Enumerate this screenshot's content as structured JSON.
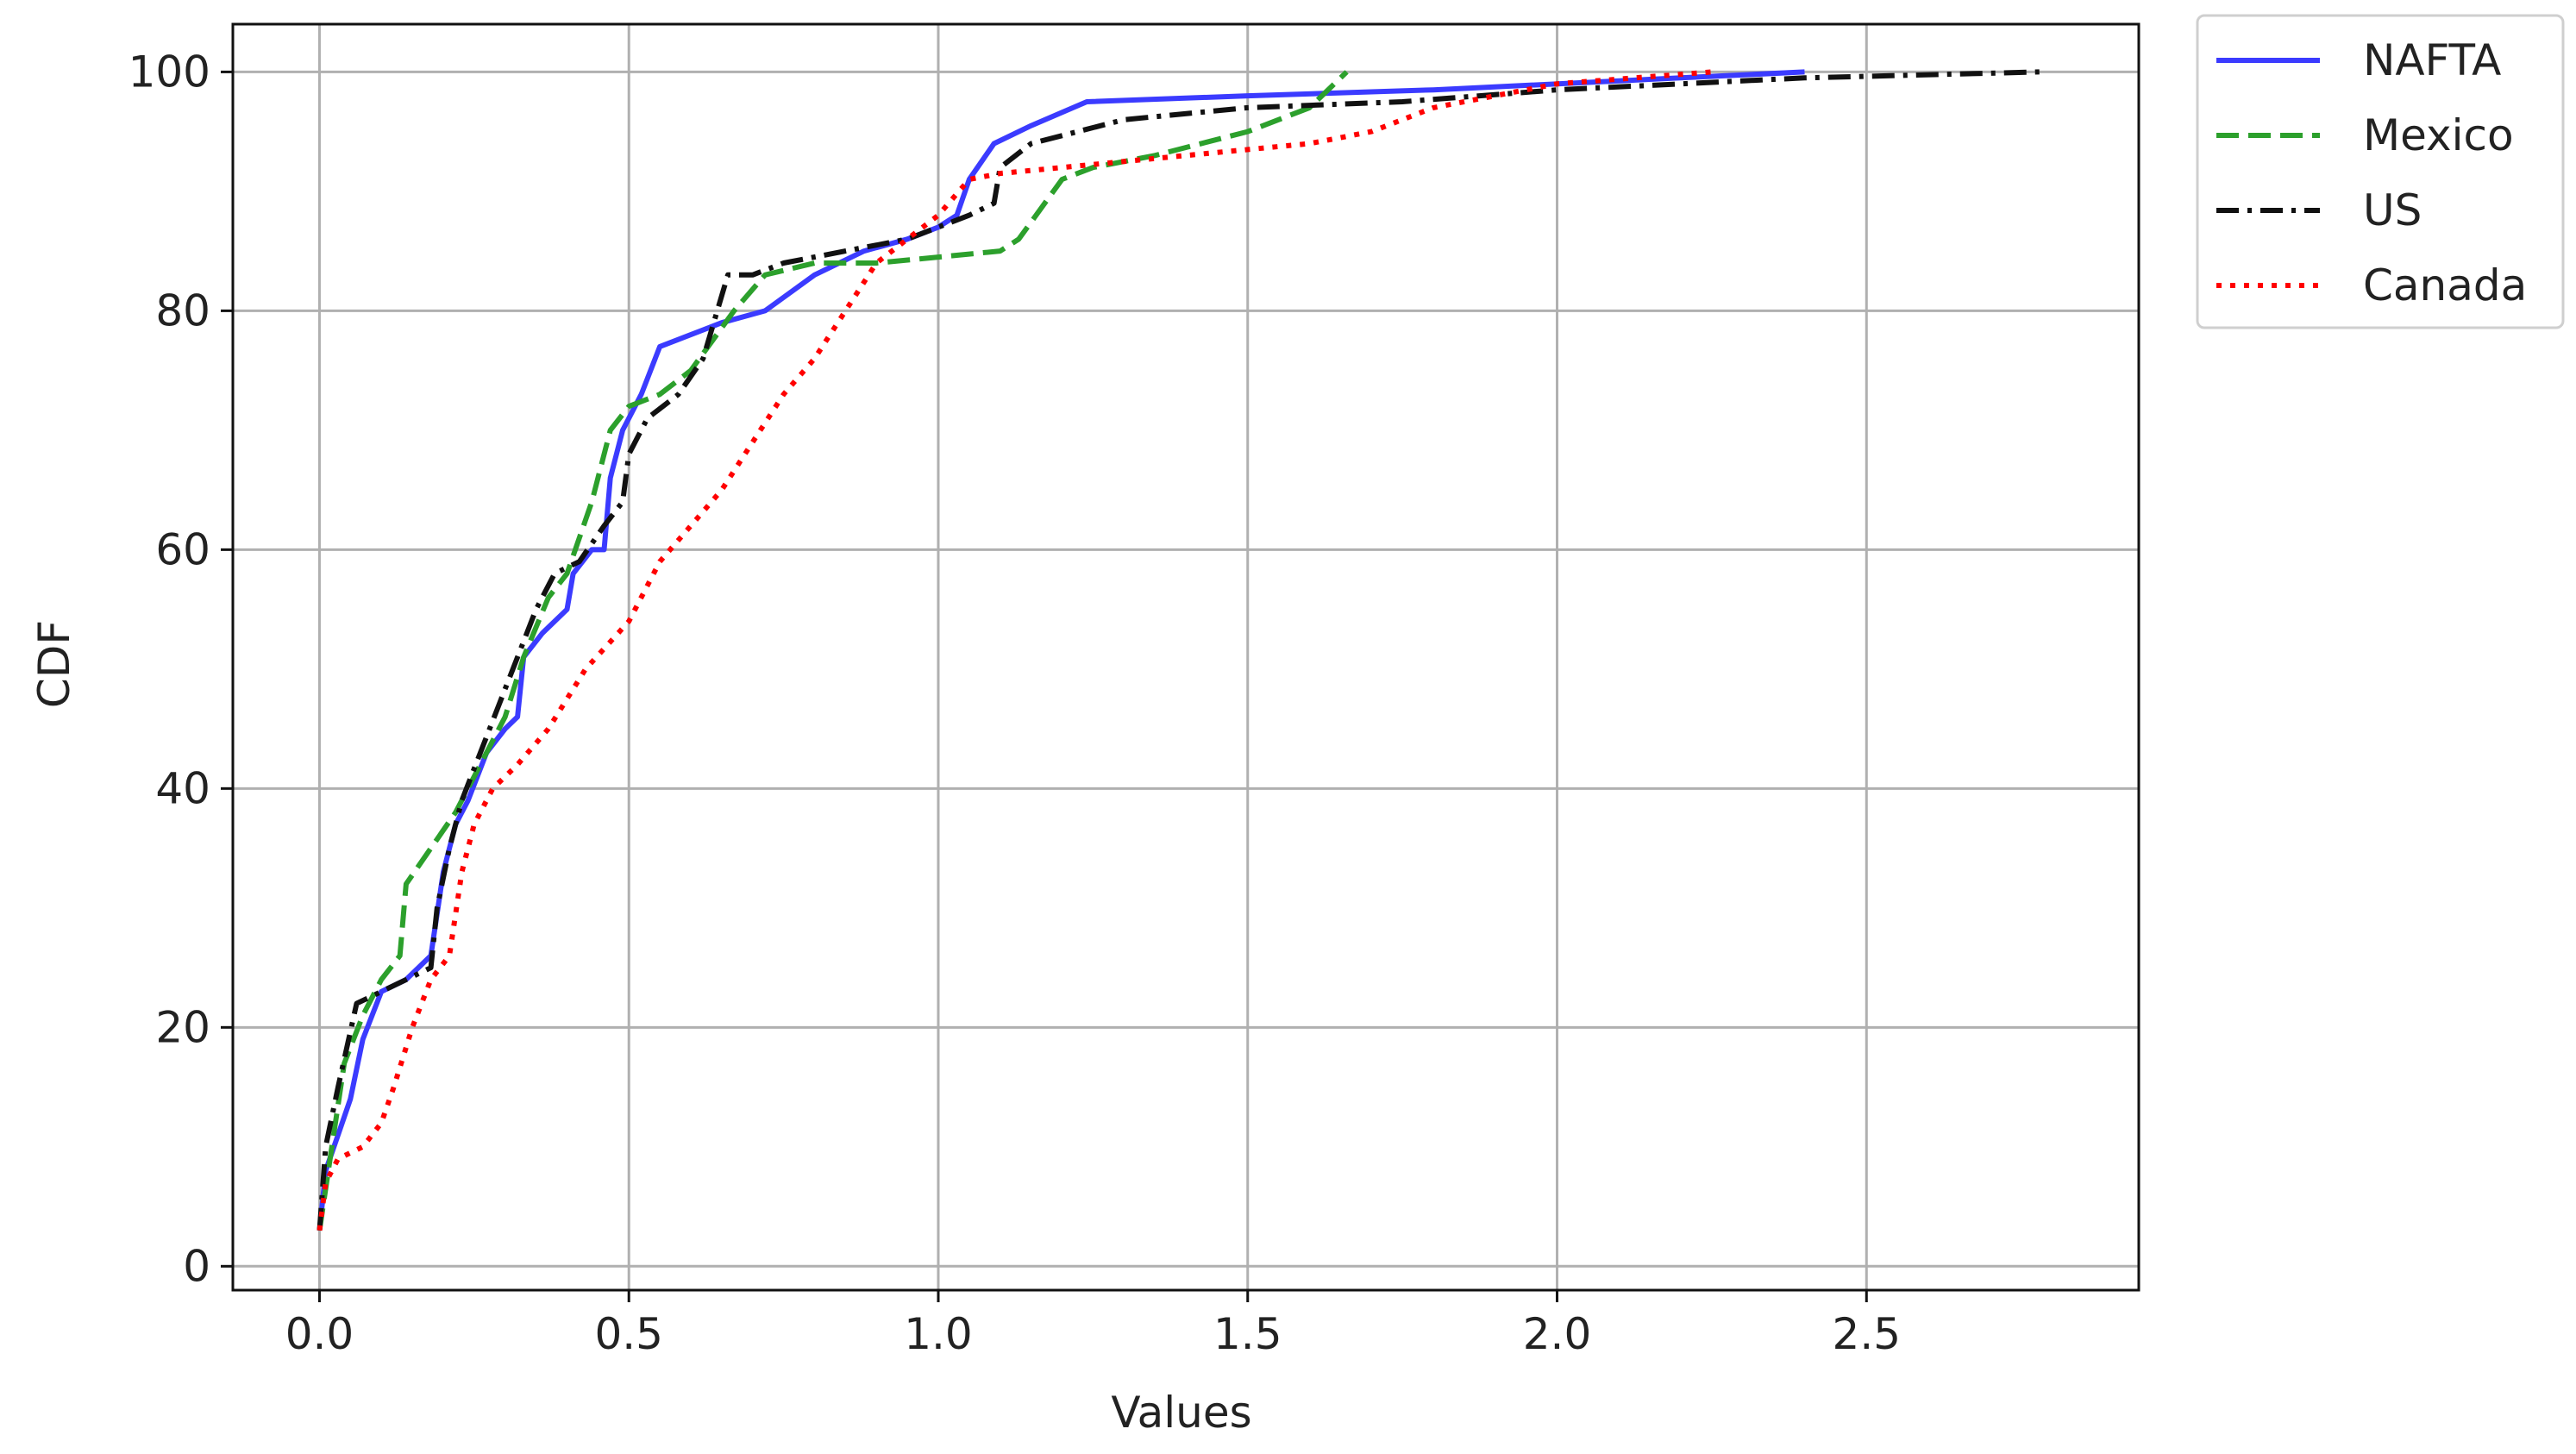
{
  "chart_data": {
    "type": "line",
    "title": "",
    "xlabel": "Values",
    "ylabel": "CDF",
    "xlim": [
      -0.14,
      2.94
    ],
    "ylim": [
      -2,
      104
    ],
    "xticks": [
      0.0,
      0.5,
      1.0,
      1.5,
      2.0,
      2.5
    ],
    "xtick_labels": [
      "0.0",
      "0.5",
      "1.0",
      "1.5",
      "2.0",
      "2.5"
    ],
    "yticks": [
      0,
      20,
      40,
      60,
      80,
      100
    ],
    "ytick_labels": [
      "0",
      "20",
      "40",
      "60",
      "80",
      "100"
    ],
    "grid": true,
    "legend_placement": "outside-top-right",
    "series": [
      {
        "name": "NAFTA",
        "color": "#3b3bff",
        "style": "solid",
        "points": [
          [
            0.0,
            3
          ],
          [
            0.01,
            8
          ],
          [
            0.03,
            11
          ],
          [
            0.05,
            14
          ],
          [
            0.07,
            19
          ],
          [
            0.1,
            23
          ],
          [
            0.14,
            24
          ],
          [
            0.18,
            26
          ],
          [
            0.2,
            33
          ],
          [
            0.22,
            37
          ],
          [
            0.24,
            39
          ],
          [
            0.27,
            43
          ],
          [
            0.3,
            45
          ],
          [
            0.32,
            46
          ],
          [
            0.33,
            51
          ],
          [
            0.36,
            53
          ],
          [
            0.4,
            55
          ],
          [
            0.41,
            58
          ],
          [
            0.44,
            60
          ],
          [
            0.46,
            60
          ],
          [
            0.47,
            66
          ],
          [
            0.49,
            70
          ],
          [
            0.52,
            73
          ],
          [
            0.55,
            77
          ],
          [
            0.6,
            78
          ],
          [
            0.65,
            79
          ],
          [
            0.72,
            80
          ],
          [
            0.8,
            83
          ],
          [
            0.88,
            85
          ],
          [
            0.95,
            86
          ],
          [
            1.0,
            87
          ],
          [
            1.03,
            88
          ],
          [
            1.05,
            91
          ],
          [
            1.09,
            94
          ],
          [
            1.15,
            95.5
          ],
          [
            1.24,
            97.5
          ],
          [
            1.5,
            98
          ],
          [
            1.8,
            98.5
          ],
          [
            2.2,
            99.5
          ],
          [
            2.4,
            100
          ]
        ]
      },
      {
        "name": "Mexico",
        "color": "#2ca02c",
        "style": "dashed",
        "points": [
          [
            0.0,
            3
          ],
          [
            0.02,
            10
          ],
          [
            0.04,
            17
          ],
          [
            0.07,
            21
          ],
          [
            0.1,
            24
          ],
          [
            0.13,
            26
          ],
          [
            0.14,
            32
          ],
          [
            0.18,
            35
          ],
          [
            0.22,
            38
          ],
          [
            0.26,
            42
          ],
          [
            0.3,
            46
          ],
          [
            0.33,
            51
          ],
          [
            0.37,
            56
          ],
          [
            0.4,
            58
          ],
          [
            0.44,
            64
          ],
          [
            0.47,
            70
          ],
          [
            0.5,
            72
          ],
          [
            0.55,
            73
          ],
          [
            0.6,
            75
          ],
          [
            0.67,
            80
          ],
          [
            0.72,
            83
          ],
          [
            0.8,
            84
          ],
          [
            0.9,
            84
          ],
          [
            1.0,
            84.5
          ],
          [
            1.1,
            85
          ],
          [
            1.13,
            86
          ],
          [
            1.2,
            91
          ],
          [
            1.25,
            92
          ],
          [
            1.35,
            93
          ],
          [
            1.5,
            95
          ],
          [
            1.6,
            97
          ],
          [
            1.66,
            100
          ]
        ]
      },
      {
        "name": "US",
        "color": "#111111",
        "style": "dashdot",
        "points": [
          [
            0.0,
            3
          ],
          [
            0.01,
            10
          ],
          [
            0.03,
            15
          ],
          [
            0.06,
            22
          ],
          [
            0.1,
            23
          ],
          [
            0.14,
            24
          ],
          [
            0.18,
            25
          ],
          [
            0.19,
            30
          ],
          [
            0.21,
            35
          ],
          [
            0.23,
            39
          ],
          [
            0.26,
            43
          ],
          [
            0.29,
            47
          ],
          [
            0.32,
            51
          ],
          [
            0.35,
            55
          ],
          [
            0.38,
            58
          ],
          [
            0.42,
            59
          ],
          [
            0.46,
            62
          ],
          [
            0.49,
            64
          ],
          [
            0.5,
            68
          ],
          [
            0.53,
            71
          ],
          [
            0.58,
            73
          ],
          [
            0.62,
            76
          ],
          [
            0.66,
            83
          ],
          [
            0.7,
            83
          ],
          [
            0.75,
            84
          ],
          [
            0.85,
            85
          ],
          [
            0.95,
            86
          ],
          [
            1.05,
            88
          ],
          [
            1.09,
            89
          ],
          [
            1.1,
            92
          ],
          [
            1.15,
            94
          ],
          [
            1.3,
            96
          ],
          [
            1.5,
            97
          ],
          [
            1.75,
            97.5
          ],
          [
            2.0,
            98.5
          ],
          [
            2.4,
            99.5
          ],
          [
            2.78,
            100
          ]
        ]
      },
      {
        "name": "Canada",
        "color": "#ff0000",
        "style": "dotted",
        "points": [
          [
            0.0,
            3
          ],
          [
            0.01,
            7
          ],
          [
            0.03,
            9
          ],
          [
            0.07,
            10
          ],
          [
            0.1,
            12
          ],
          [
            0.12,
            15
          ],
          [
            0.15,
            20
          ],
          [
            0.18,
            24
          ],
          [
            0.21,
            26
          ],
          [
            0.23,
            33
          ],
          [
            0.25,
            37
          ],
          [
            0.28,
            40
          ],
          [
            0.32,
            42
          ],
          [
            0.37,
            45
          ],
          [
            0.43,
            50
          ],
          [
            0.5,
            54
          ],
          [
            0.55,
            59
          ],
          [
            0.6,
            62
          ],
          [
            0.65,
            65
          ],
          [
            0.7,
            69
          ],
          [
            0.75,
            73
          ],
          [
            0.8,
            76
          ],
          [
            0.85,
            80
          ],
          [
            0.9,
            84
          ],
          [
            0.95,
            86
          ],
          [
            1.0,
            88
          ],
          [
            1.05,
            91
          ],
          [
            1.1,
            91.5
          ],
          [
            1.2,
            92
          ],
          [
            1.4,
            93
          ],
          [
            1.6,
            94
          ],
          [
            1.7,
            95
          ],
          [
            1.8,
            97
          ],
          [
            2.0,
            99
          ],
          [
            2.25,
            100
          ]
        ]
      }
    ]
  }
}
